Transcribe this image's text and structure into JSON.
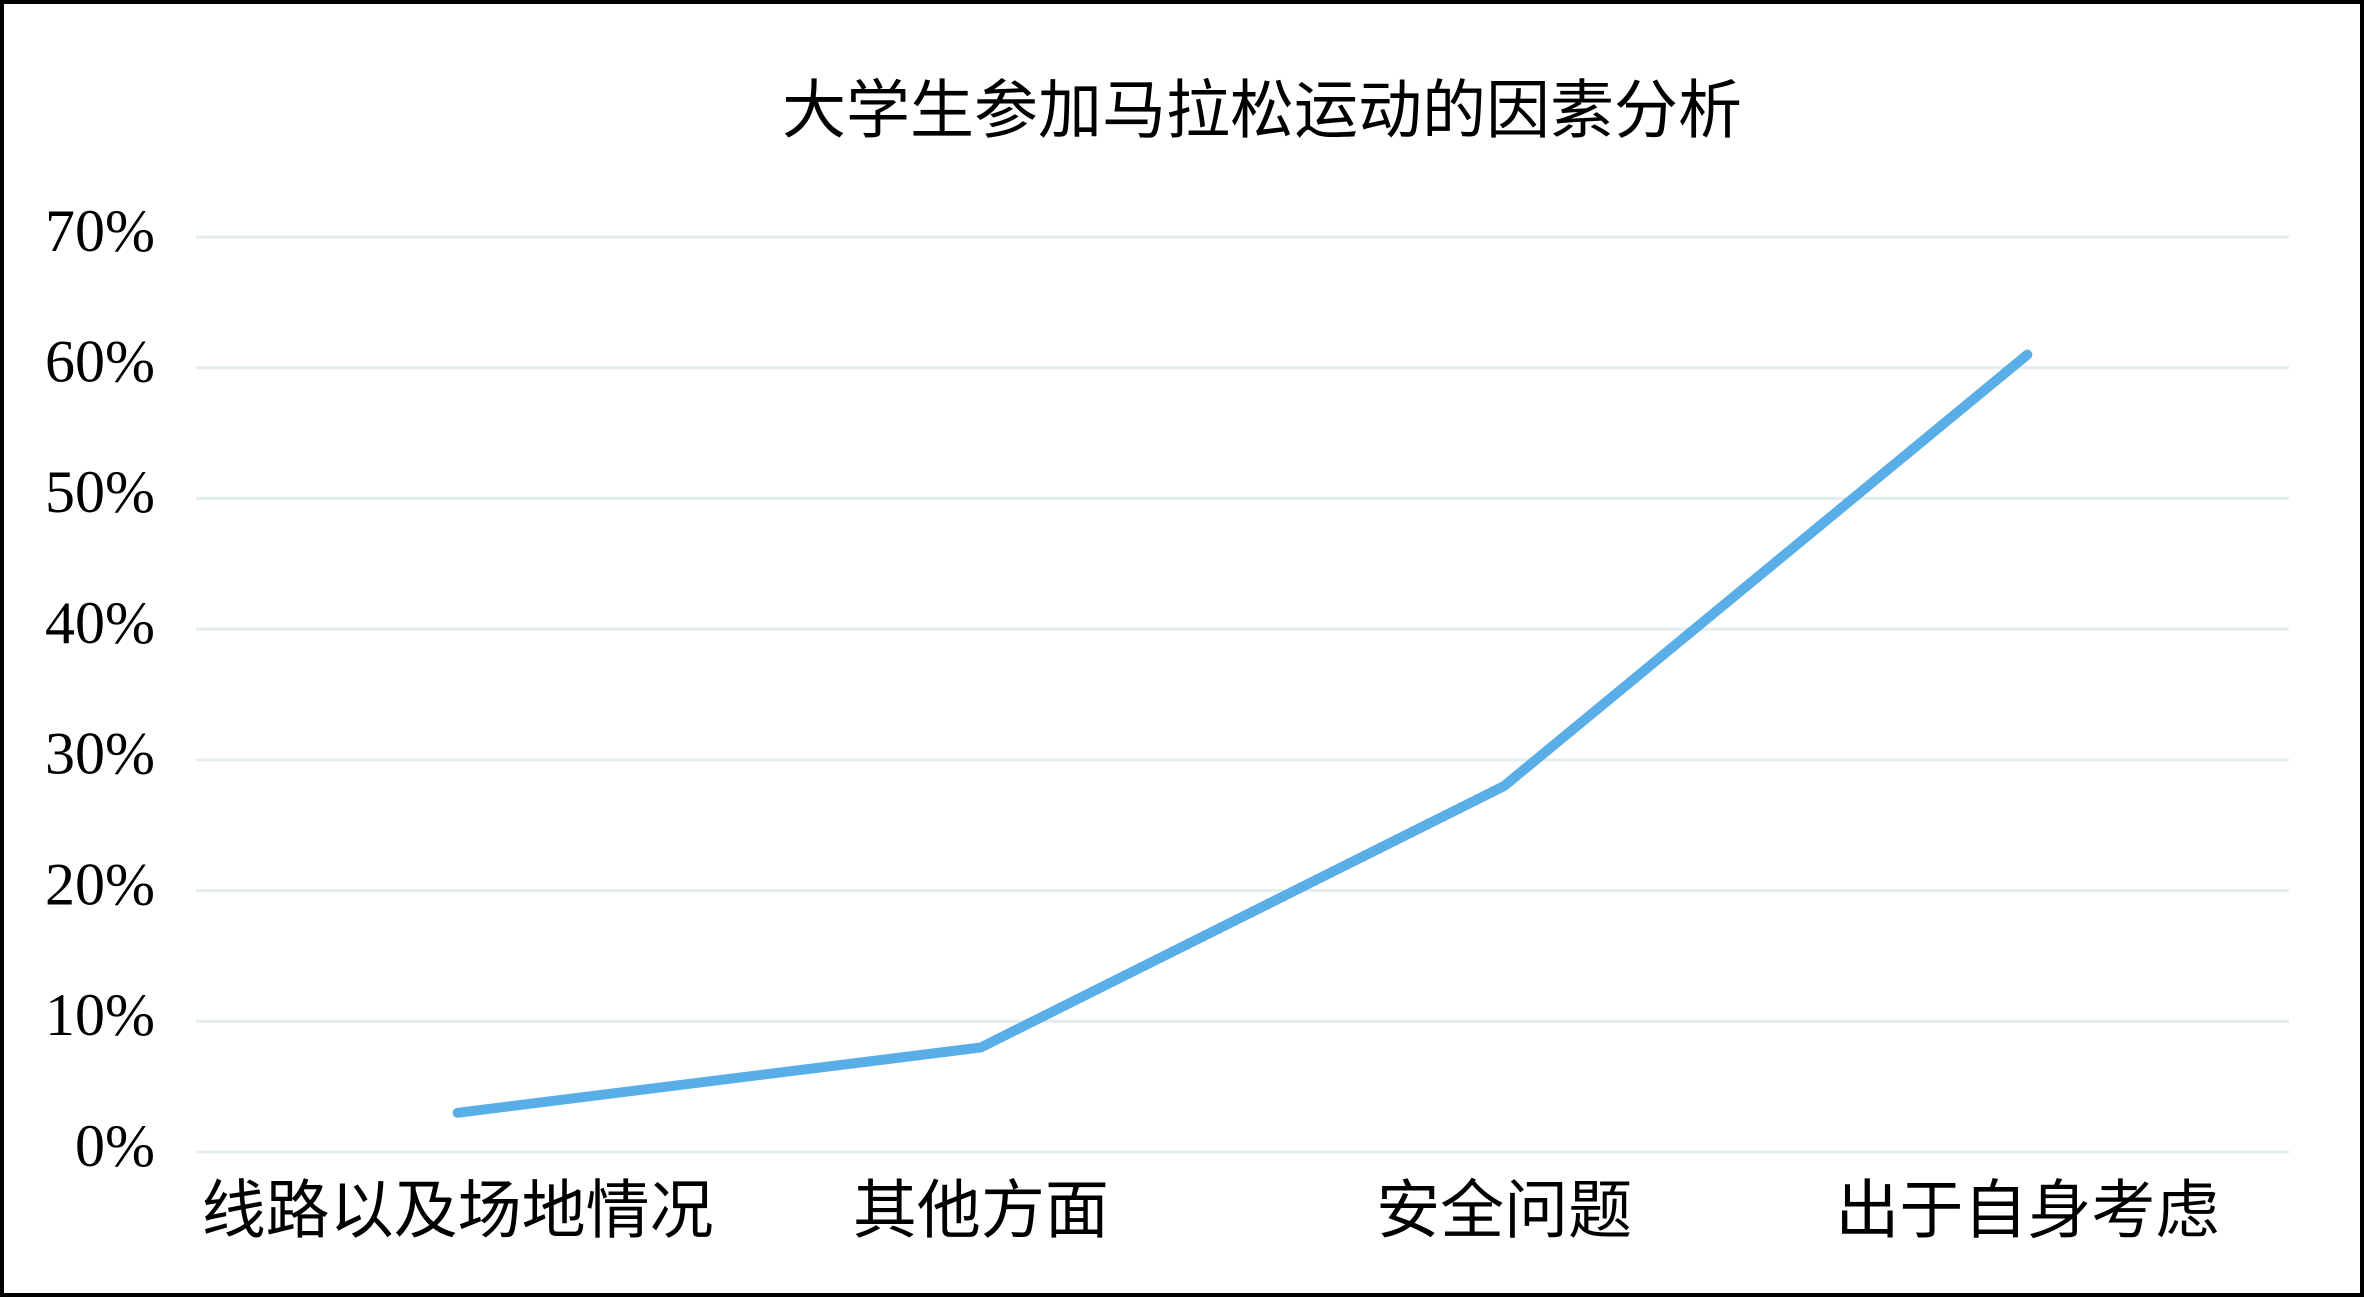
{
  "chart_data": {
    "type": "line",
    "title": "大学生参加马拉松运动的因素分析",
    "categories": [
      "线路以及场地情况",
      "其他方面",
      "安全问题",
      "出于自身考虑"
    ],
    "values": [
      3,
      8,
      28,
      61
    ],
    "color": "#5aaee8",
    "ylim": [
      0,
      70
    ],
    "yticks": [
      {
        "value": 0,
        "label": "0%"
      },
      {
        "value": 10,
        "label": "10%"
      },
      {
        "value": 20,
        "label": "20%"
      },
      {
        "value": 30,
        "label": "30%"
      },
      {
        "value": 40,
        "label": "40%"
      },
      {
        "value": 50,
        "label": "50%"
      },
      {
        "value": 60,
        "label": "60%"
      },
      {
        "value": 70,
        "label": "70%"
      }
    ],
    "grid": true
  }
}
